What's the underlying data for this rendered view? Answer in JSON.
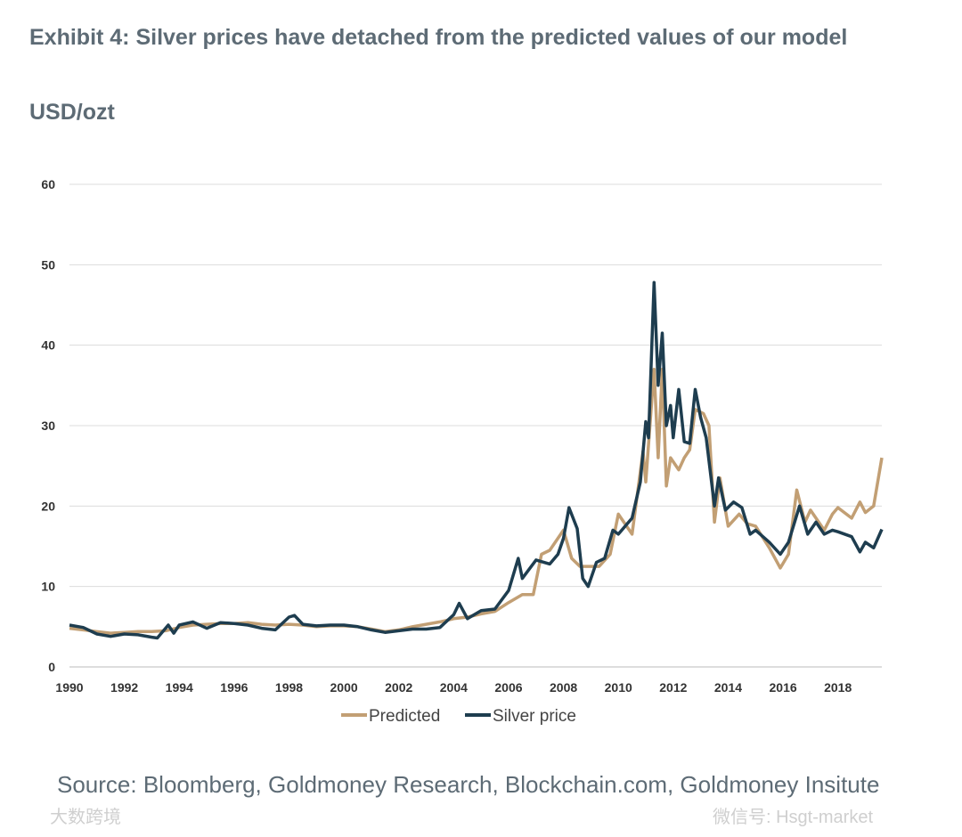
{
  "title": "Exhibit 4: Silver prices have detached from the predicted values of our model",
  "unit_label": "USD/ozt",
  "source": "Source: Bloomberg, Goldmoney Research, Blockchain.com, Goldmoney Insitute",
  "watermarks": [
    "微信号: Hsgt-market",
    "大数跨境"
  ],
  "colors": {
    "predicted": "#c29f74",
    "silver": "#1e3d4f",
    "grid": "#dcdcdc"
  },
  "chart_data": {
    "type": "line",
    "title": "Exhibit 4: Silver prices have detached from the predicted values of our model",
    "ylabel": "USD/ozt",
    "xlabel": "",
    "xlim": [
      1990,
      2019.6
    ],
    "ylim": [
      0,
      60
    ],
    "yticks": [
      "0",
      "10",
      "20",
      "30",
      "40",
      "50",
      "60"
    ],
    "xticks": [
      "1990",
      "1992",
      "1994",
      "1996",
      "1998",
      "2000",
      "2002",
      "2004",
      "2006",
      "2008",
      "2010",
      "2012",
      "2014",
      "2016",
      "2018"
    ],
    "grid": true,
    "legend_position": "bottom",
    "series": [
      {
        "name": "Predicted",
        "x": [
          1990,
          1990.5,
          1991,
          1991.5,
          1992,
          1992.5,
          1993,
          1993.5,
          1994,
          1994.5,
          1995,
          1995.5,
          1996,
          1996.5,
          1997,
          1997.5,
          1998,
          1998.5,
          1999,
          1999.5,
          2000,
          2000.5,
          2001,
          2001.5,
          2002,
          2002.5,
          2003,
          2003.5,
          2004,
          2004.5,
          2005,
          2005.5,
          2006,
          2006.5,
          2006.9,
          2007.2,
          2007.5,
          2008,
          2008.3,
          2008.6,
          2009,
          2009.3,
          2009.7,
          2010,
          2010.5,
          2010.9,
          2011,
          2011.3,
          2011.45,
          2011.6,
          2011.75,
          2011.9,
          2012.2,
          2012.4,
          2012.6,
          2012.8,
          2013.1,
          2013.3,
          2013.5,
          2013.7,
          2014,
          2014.4,
          2014.7,
          2015,
          2015.5,
          2015.9,
          2016.2,
          2016.5,
          2016.8,
          2017,
          2017.5,
          2017.8,
          2018,
          2018.5,
          2018.8,
          2019,
          2019.3,
          2019.6
        ],
        "y": [
          4.8,
          4.6,
          4.4,
          4.2,
          4.3,
          4.4,
          4.4,
          4.5,
          4.9,
          5.2,
          5.3,
          5.4,
          5.4,
          5.5,
          5.3,
          5.2,
          5.3,
          5.2,
          5.0,
          5.1,
          5.1,
          5.0,
          4.7,
          4.4,
          4.6,
          5.0,
          5.3,
          5.6,
          6.0,
          6.2,
          6.6,
          6.9,
          8.0,
          9.0,
          9.0,
          14.0,
          14.5,
          17.0,
          13.5,
          12.5,
          12.5,
          12.5,
          14.0,
          19.0,
          16.5,
          26.8,
          23.0,
          37.0,
          26.0,
          37.0,
          22.5,
          26.0,
          24.5,
          26.0,
          27.0,
          32.0,
          31.5,
          30.0,
          18.0,
          23.5,
          17.5,
          19.0,
          17.8,
          17.5,
          14.8,
          12.3,
          14.0,
          22.0,
          18.0,
          19.5,
          17.0,
          19.0,
          19.8,
          18.5,
          20.5,
          19.2,
          20.0,
          26.0
        ]
      },
      {
        "name": "Silver price",
        "x": [
          1990,
          1990.5,
          1991,
          1991.5,
          1992,
          1992.5,
          1993,
          1993.2,
          1993.6,
          1993.8,
          1994,
          1994.5,
          1995,
          1995.5,
          1996,
          1996.5,
          1997,
          1997.5,
          1998,
          1998.2,
          1998.5,
          1999,
          1999.5,
          2000,
          2000.5,
          2001,
          2001.5,
          2002,
          2002.5,
          2003,
          2003.5,
          2004,
          2004.2,
          2004.5,
          2005,
          2005.5,
          2006,
          2006.35,
          2006.5,
          2007,
          2007.5,
          2007.8,
          2008,
          2008.2,
          2008.5,
          2008.7,
          2008.9,
          2009.2,
          2009.5,
          2009.8,
          2010,
          2010.5,
          2010.8,
          2011,
          2011.1,
          2011.3,
          2011.45,
          2011.6,
          2011.75,
          2011.9,
          2012,
          2012.2,
          2012.4,
          2012.6,
          2012.8,
          2013,
          2013.2,
          2013.5,
          2013.65,
          2013.9,
          2014.2,
          2014.5,
          2014.8,
          2015,
          2015.5,
          2015.9,
          2016.2,
          2016.6,
          2016.9,
          2017.2,
          2017.5,
          2017.8,
          2018,
          2018.5,
          2018.8,
          2019,
          2019.3,
          2019.6
        ],
        "y": [
          5.2,
          4.9,
          4.1,
          3.8,
          4.1,
          4.0,
          3.7,
          3.6,
          5.2,
          4.2,
          5.2,
          5.6,
          4.8,
          5.5,
          5.4,
          5.2,
          4.8,
          4.6,
          6.2,
          6.4,
          5.3,
          5.1,
          5.2,
          5.2,
          5.0,
          4.6,
          4.3,
          4.5,
          4.7,
          4.7,
          4.9,
          6.5,
          7.9,
          6.0,
          7.0,
          7.2,
          9.5,
          13.5,
          11.0,
          13.3,
          12.8,
          14.0,
          16.0,
          19.8,
          17.2,
          11.0,
          10.0,
          13.0,
          13.5,
          17.0,
          16.5,
          18.5,
          23.0,
          30.5,
          28.5,
          47.8,
          35.0,
          41.5,
          30.0,
          32.5,
          28.5,
          34.5,
          28.0,
          27.8,
          34.5,
          31.0,
          28.5,
          20.0,
          23.5,
          19.5,
          20.5,
          19.8,
          16.5,
          17.0,
          15.5,
          14.0,
          15.5,
          20.0,
          16.5,
          18.0,
          16.5,
          17.0,
          16.8,
          16.2,
          14.3,
          15.5,
          14.8,
          17.1
        ]
      }
    ]
  }
}
